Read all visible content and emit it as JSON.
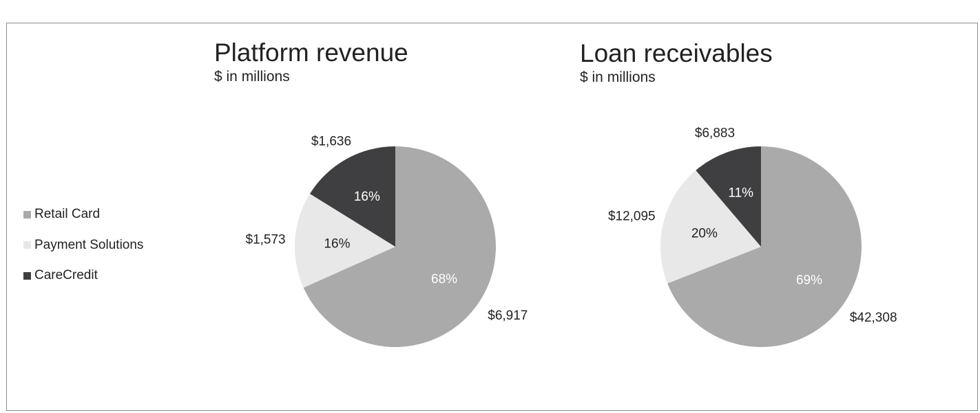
{
  "charts_legend": [
    {
      "label": "Retail Card",
      "color": "#aaaaaa"
    },
    {
      "label": "Payment Solutions",
      "color": "#e8e8e8"
    },
    {
      "label": "CareCredit",
      "color": "#3f3f41"
    }
  ],
  "chart_data": [
    {
      "type": "pie",
      "title": "Platform revenue",
      "subtitle": "$ in millions",
      "slices": [
        {
          "name": "Retail Card",
          "value": 6917,
          "value_label": "$6,917",
          "percent_label": "68%",
          "color": "#aaaaaa"
        },
        {
          "name": "Payment Solutions",
          "value": 1573,
          "value_label": "$1,573",
          "percent_label": "16%",
          "color": "#e8e8e8"
        },
        {
          "name": "CareCredit",
          "value": 1636,
          "value_label": "$1,636",
          "percent_label": "16%",
          "color": "#3f3f41"
        }
      ],
      "legend": "left"
    },
    {
      "type": "pie",
      "title": "Loan receivables",
      "subtitle": "$ in millions",
      "slices": [
        {
          "name": "Retail Card",
          "value": 42308,
          "value_label": "$42,308",
          "percent_label": "69%",
          "color": "#aaaaaa"
        },
        {
          "name": "Payment Solutions",
          "value": 12095,
          "value_label": "$12,095",
          "percent_label": "20%",
          "color": "#e8e8e8"
        },
        {
          "name": "CareCredit",
          "value": 6883,
          "value_label": "$6,883",
          "percent_label": "11%",
          "color": "#3f3f41"
        }
      ],
      "legend": "left"
    }
  ]
}
